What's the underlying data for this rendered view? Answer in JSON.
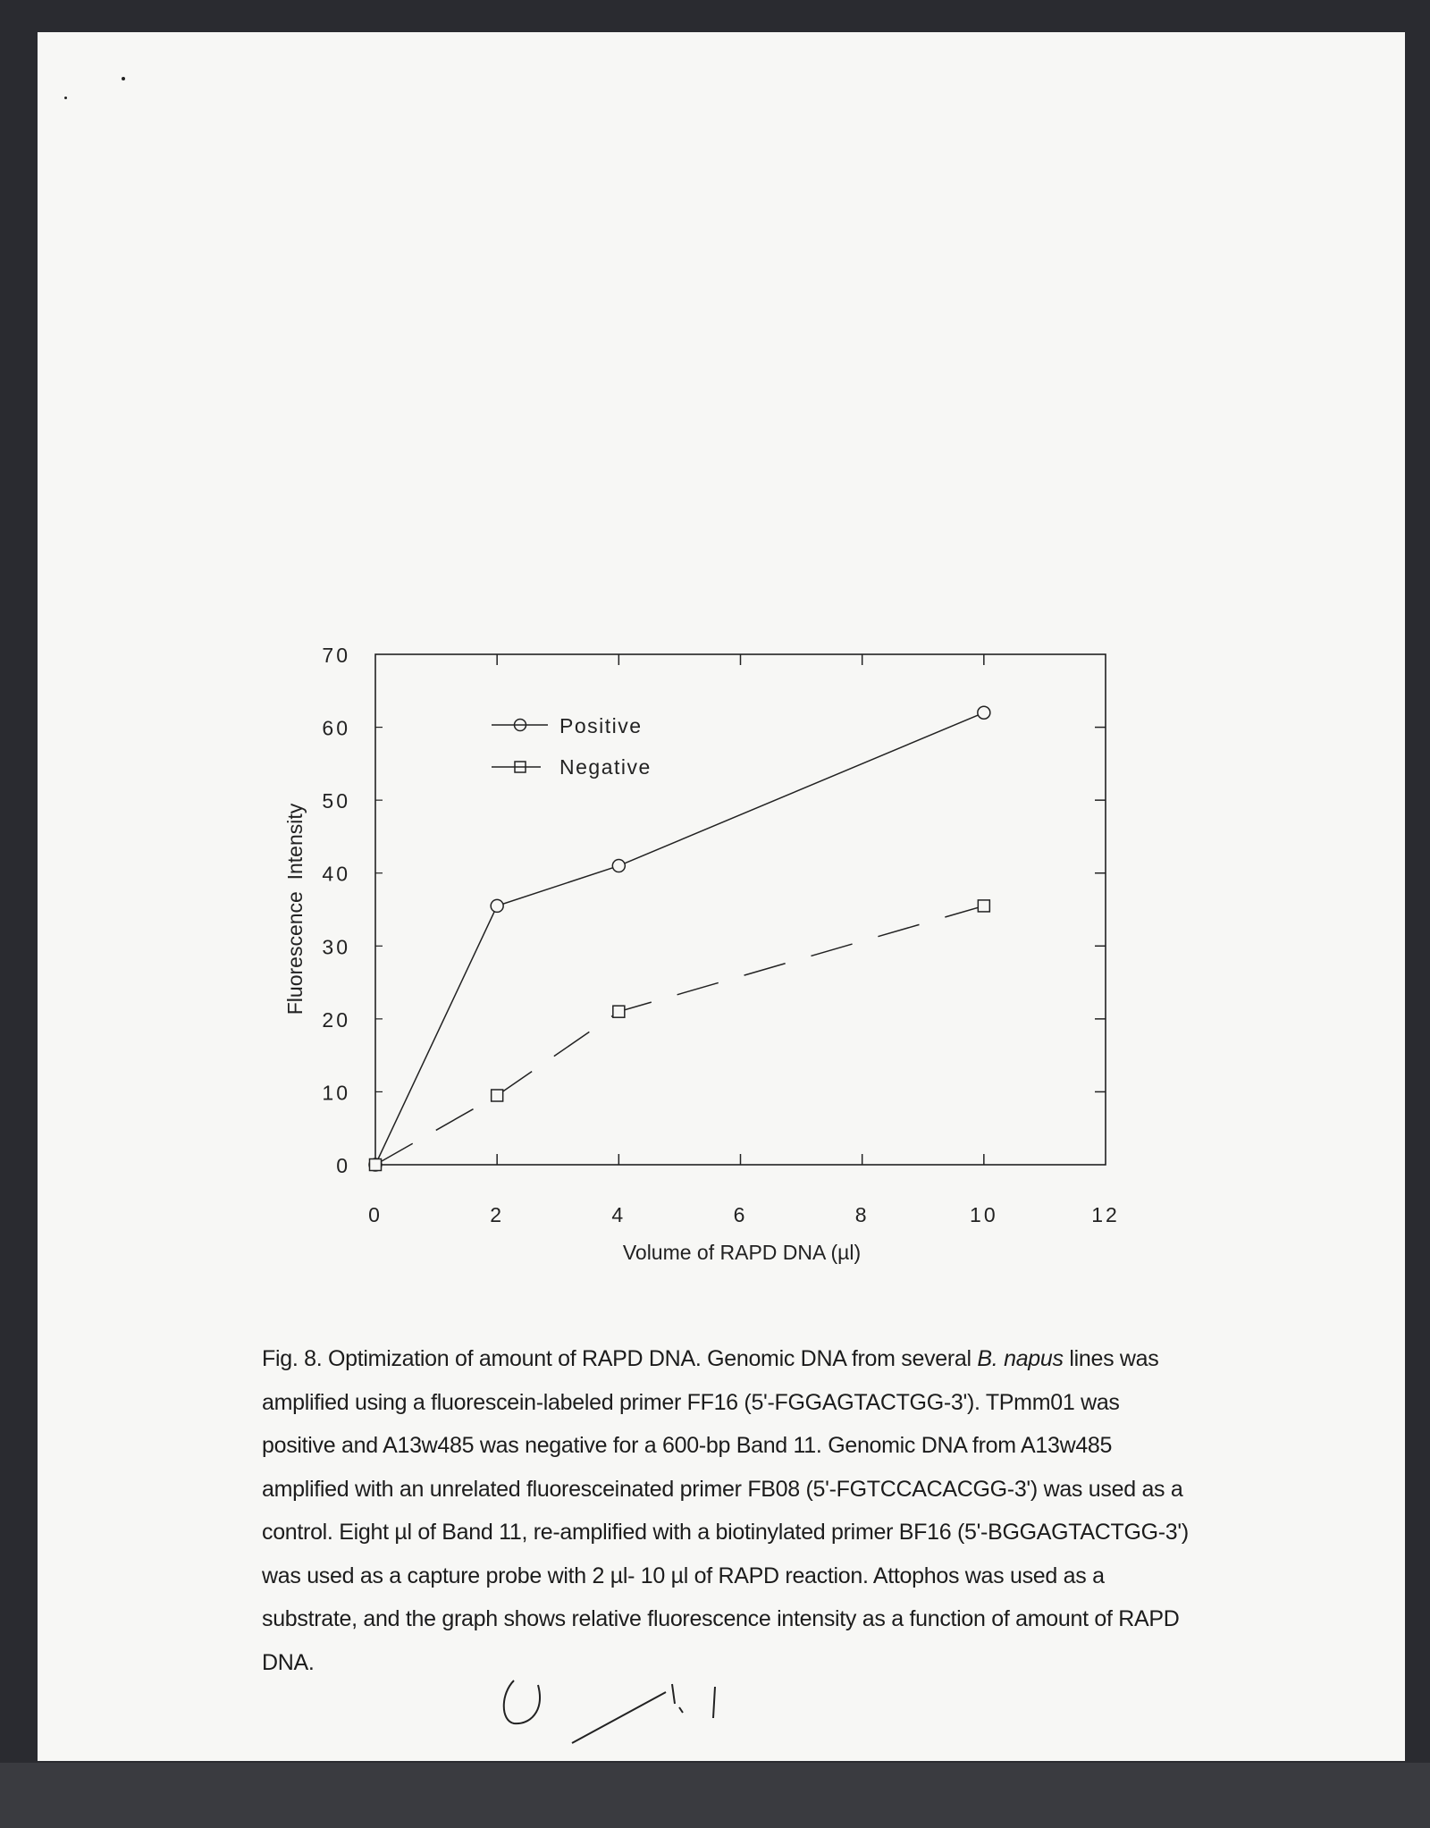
{
  "chart_data": {
    "type": "line",
    "xlabel": "Volume of RAPD DNA (µl)",
    "ylabel": "Fluorescence  Intensity",
    "xlim": [
      0,
      12
    ],
    "ylim": [
      0,
      70
    ],
    "xticks": [
      "0",
      "2",
      "4",
      "6",
      "8",
      "10",
      "12"
    ],
    "yticks": [
      "0",
      "10",
      "20",
      "30",
      "40",
      "50",
      "60",
      "70"
    ],
    "grid": false,
    "legend_position": "top-left",
    "series": [
      {
        "name": "Positive",
        "marker": "circle",
        "line": "solid",
        "x": [
          0,
          2,
          4,
          10
        ],
        "y": [
          0,
          35.5,
          41,
          62
        ]
      },
      {
        "name": "Negative",
        "marker": "square",
        "line": "dashed",
        "x": [
          0,
          2,
          4,
          10
        ],
        "y": [
          0,
          9.5,
          21,
          35.5
        ]
      }
    ]
  },
  "caption": {
    "line1_a": "Fig. 8.  Optimization of amount of RAPD DNA.  Genomic DNA from several ",
    "line1_italic": "B. napus",
    "line1_b": " lines was",
    "lines": [
      "amplified using a fluorescein-labeled primer FF16 (5'-FGGAGTACTGG-3').  TPmm01 was",
      "positive and A13w485 was negative for a 600-bp Band 11.  Genomic DNA from A13w485",
      "amplified with an unrelated fluoresceinated primer FB08 (5'-FGTCCACACGG-3') was used as a",
      "control.  Eight µl of Band 11, re-amplified with a biotinylated primer BF16 (5'-BGGAGTACTGG-3')",
      "was used as a capture probe with 2 µl- 10 µl of RAPD reaction.  Attophos was used as a",
      "substrate, and the graph shows relative fluorescence intensity as a function of amount of RAPD",
      "DNA."
    ]
  },
  "handwritten_note": "0 1.1"
}
